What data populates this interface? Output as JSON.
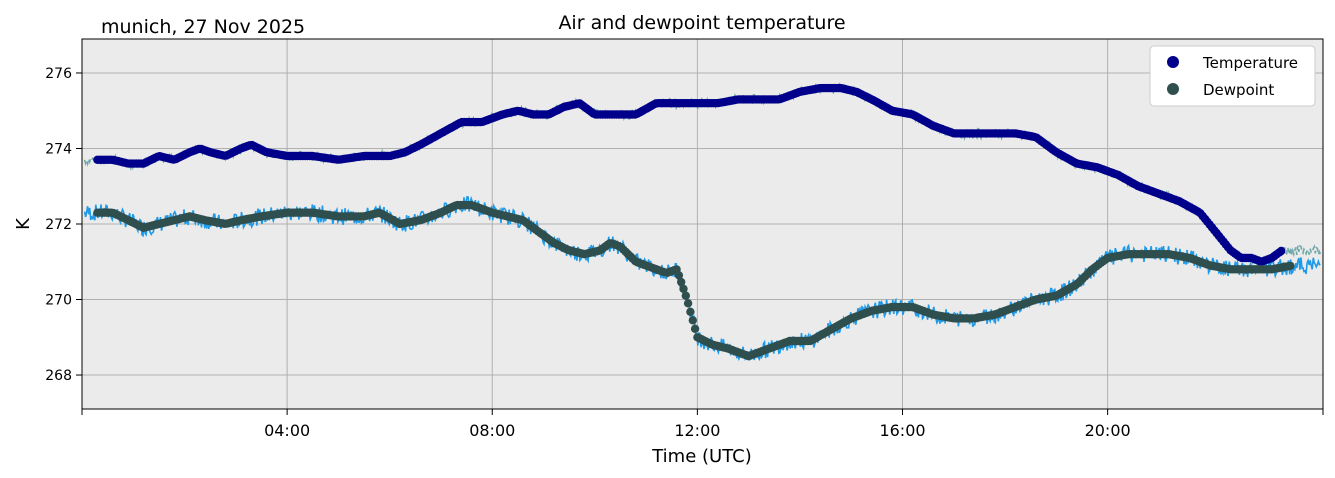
{
  "chart_data": {
    "type": "line",
    "title": "Air and dewpoint temperature",
    "subtitle": "munich, 27 Nov 2025",
    "xlabel": "Time (UTC)",
    "ylabel": "K",
    "xlim_hours": [
      0,
      24.2
    ],
    "ylim": [
      267.1,
      276.9
    ],
    "x_ticks": [
      {
        "hour": 4,
        "label": "04:00"
      },
      {
        "hour": 8,
        "label": "08:00"
      },
      {
        "hour": 12,
        "label": "12:00"
      },
      {
        "hour": 16,
        "label": "16:00"
      },
      {
        "hour": 20,
        "label": "20:00"
      }
    ],
    "y_ticks": [
      {
        "value": 268,
        "label": "268"
      },
      {
        "value": 270,
        "label": "270"
      },
      {
        "value": 272,
        "label": "272"
      },
      {
        "value": 274,
        "label": "274"
      },
      {
        "value": 276,
        "label": "276"
      }
    ],
    "grid": true,
    "legend_position": "top-right",
    "colors": {
      "background": "#ebebeb",
      "grid": "#b0b0b0",
      "temperature": "#00008b",
      "dewpoint": "#2f4f4f",
      "temperature_raw": "#6fa8a8",
      "dewpoint_raw": "#1e9ae8"
    },
    "series": [
      {
        "name": "Temperature",
        "marker": "circle",
        "color": "#00008b",
        "x": [
          0.3,
          0.6,
          0.9,
          1.2,
          1.5,
          1.8,
          2.1,
          2.3,
          2.5,
          2.8,
          3.1,
          3.3,
          3.6,
          4.0,
          4.5,
          5.0,
          5.5,
          6.0,
          6.3,
          6.6,
          7.0,
          7.4,
          7.8,
          8.2,
          8.5,
          8.8,
          9.1,
          9.4,
          9.7,
          10.0,
          10.4,
          10.8,
          11.2,
          11.6,
          12.0,
          12.4,
          12.8,
          13.2,
          13.6,
          14.0,
          14.4,
          14.8,
          15.1,
          15.4,
          15.8,
          16.2,
          16.6,
          17.0,
          17.4,
          17.8,
          18.2,
          18.6,
          19.0,
          19.4,
          19.8,
          20.2,
          20.6,
          21.0,
          21.4,
          21.8,
          22.1,
          22.4,
          22.6,
          22.8,
          23.0,
          23.2,
          23.4
        ],
        "values": [
          273.7,
          273.7,
          273.6,
          273.6,
          273.8,
          273.7,
          273.9,
          274.0,
          273.9,
          273.8,
          274.0,
          274.1,
          273.9,
          273.8,
          273.8,
          273.7,
          273.8,
          273.8,
          273.9,
          274.1,
          274.4,
          274.7,
          274.7,
          274.9,
          275.0,
          274.9,
          274.9,
          275.1,
          275.2,
          274.9,
          274.9,
          274.9,
          275.2,
          275.2,
          275.2,
          275.2,
          275.3,
          275.3,
          275.3,
          275.5,
          275.6,
          275.6,
          275.5,
          275.3,
          275.0,
          274.9,
          274.6,
          274.4,
          274.4,
          274.4,
          274.4,
          274.3,
          273.9,
          273.6,
          273.5,
          273.3,
          273.0,
          272.8,
          272.6,
          272.3,
          271.8,
          271.3,
          271.1,
          271.1,
          271.0,
          271.1,
          271.3
        ]
      },
      {
        "name": "Dewpoint",
        "marker": "circle",
        "color": "#2f4f4f",
        "x": [
          0.3,
          0.6,
          0.9,
          1.2,
          1.5,
          1.8,
          2.1,
          2.4,
          2.8,
          3.1,
          3.5,
          4.0,
          4.5,
          5.0,
          5.5,
          5.8,
          6.2,
          6.6,
          7.0,
          7.3,
          7.6,
          8.0,
          8.3,
          8.6,
          8.9,
          9.2,
          9.5,
          9.8,
          10.1,
          10.3,
          10.5,
          10.8,
          11.2,
          11.4,
          11.6,
          11.8,
          12.0,
          12.3,
          12.6,
          13.0,
          13.4,
          13.8,
          14.2,
          14.6,
          15.0,
          15.4,
          15.8,
          16.2,
          16.6,
          17.0,
          17.4,
          17.8,
          18.2,
          18.6,
          19.0,
          19.4,
          19.7,
          20.0,
          20.4,
          20.8,
          21.2,
          21.6,
          22.0,
          22.4,
          22.8,
          23.2,
          23.6
        ],
        "values": [
          272.3,
          272.3,
          272.1,
          271.9,
          272.0,
          272.1,
          272.2,
          272.1,
          272.0,
          272.1,
          272.2,
          272.3,
          272.3,
          272.2,
          272.2,
          272.3,
          272.0,
          272.1,
          272.3,
          272.5,
          272.5,
          272.3,
          272.2,
          272.1,
          271.8,
          271.5,
          271.3,
          271.2,
          271.3,
          271.5,
          271.4,
          271.0,
          270.8,
          270.7,
          270.8,
          270.0,
          269.0,
          268.8,
          268.7,
          268.5,
          268.7,
          268.9,
          268.9,
          269.2,
          269.5,
          269.7,
          269.8,
          269.8,
          269.6,
          269.5,
          269.5,
          269.6,
          269.8,
          270.0,
          270.1,
          270.4,
          270.8,
          271.1,
          271.2,
          271.2,
          271.2,
          271.1,
          270.9,
          270.8,
          270.8,
          270.8,
          270.9
        ]
      }
    ]
  }
}
